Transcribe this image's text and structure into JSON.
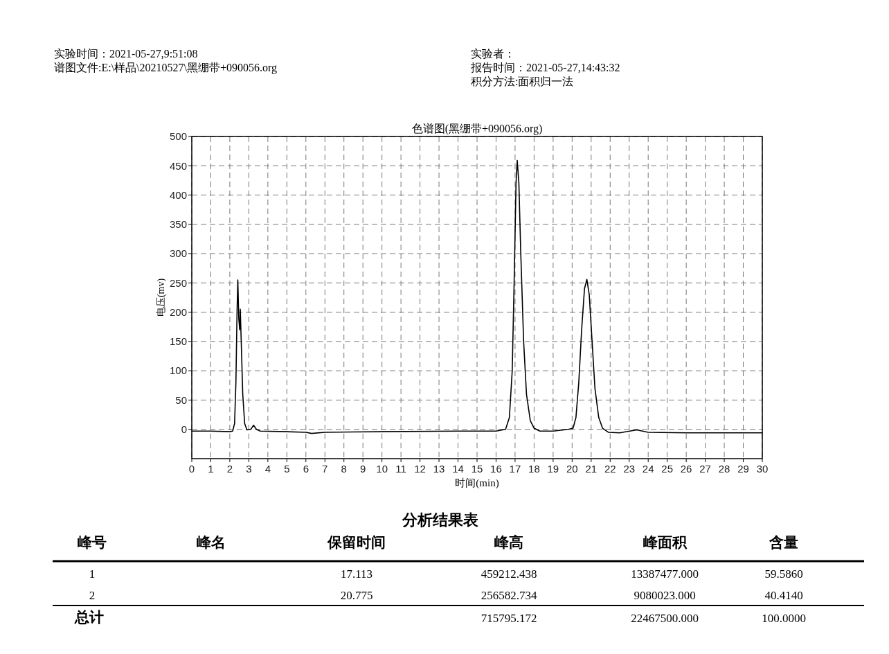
{
  "chart_data": [
    {
      "type": "line",
      "title": "色谱图(黑绷带+090056.org)",
      "xlabel": "时间(min)",
      "ylabel": "电压(mv)",
      "annotations": [
        "实验时间：2021-05-27,9:51:08",
        "谱图文件:E:\\样品\\20210527\\黑绷带+090056.org",
        "实验者：",
        "报告时间：2021-05-27,14:43:32",
        "积分方法:面积归一法"
      ],
      "x": [
        0,
        1,
        2,
        2.15,
        2.25,
        2.32,
        2.38,
        2.42,
        2.47,
        2.52,
        2.55,
        2.6,
        2.68,
        2.78,
        2.9,
        3.1,
        3.25,
        3.4,
        3.6,
        5,
        6,
        6.3,
        7,
        10,
        14,
        16,
        16.5,
        16.7,
        16.85,
        16.95,
        17.05,
        17.113,
        17.2,
        17.3,
        17.45,
        17.6,
        17.8,
        18,
        18.3,
        19,
        19.8,
        20.05,
        20.2,
        20.35,
        20.5,
        20.65,
        20.775,
        20.9,
        21.05,
        21.2,
        21.4,
        21.6,
        21.9,
        22.5,
        23.4,
        24,
        26,
        30
      ],
      "series": [
        {
          "color": "#000000",
          "values": [
            -3,
            -3,
            -4,
            -3,
            10,
            80,
            200,
            255,
            190,
            170,
            205,
            150,
            60,
            10,
            -1,
            0,
            7,
            0,
            -3,
            -4,
            -5,
            -7,
            -5,
            -4,
            -3,
            -3,
            0,
            20,
            100,
            250,
            420,
            459,
            420,
            300,
            150,
            60,
            15,
            2,
            -3,
            -3,
            0,
            2,
            20,
            80,
            170,
            240,
            256,
            230,
            150,
            70,
            20,
            2,
            -5,
            -6,
            -1,
            -5,
            -6,
            -6
          ]
        }
      ],
      "xlim": [
        0,
        30
      ],
      "xticks": [
        0,
        1,
        2,
        3,
        4,
        5,
        6,
        7,
        8,
        9,
        10,
        11,
        12,
        13,
        14,
        15,
        16,
        17,
        18,
        19,
        20,
        21,
        22,
        23,
        24,
        25,
        26,
        27,
        28,
        29,
        30
      ],
      "ylim": [
        -50,
        500
      ],
      "yticks": [
        0,
        50,
        100,
        150,
        200,
        250,
        300,
        350,
        400,
        450,
        500
      ],
      "grid": true,
      "line_style": "solid",
      "marker": "none"
    },
    {
      "type": "other",
      "title": "分析结果表",
      "annotations": [
        "峰号",
        "峰名",
        "保留时间",
        "峰高",
        "峰面积",
        "含量",
        "1",
        "17.113",
        "459212.438",
        "13387477.000",
        "59.5860",
        "2",
        "20.775",
        "256582.734",
        "9080023.000",
        "40.4140",
        "总计",
        "715795.172",
        "22467500.000",
        "100.0000"
      ]
    }
  ]
}
